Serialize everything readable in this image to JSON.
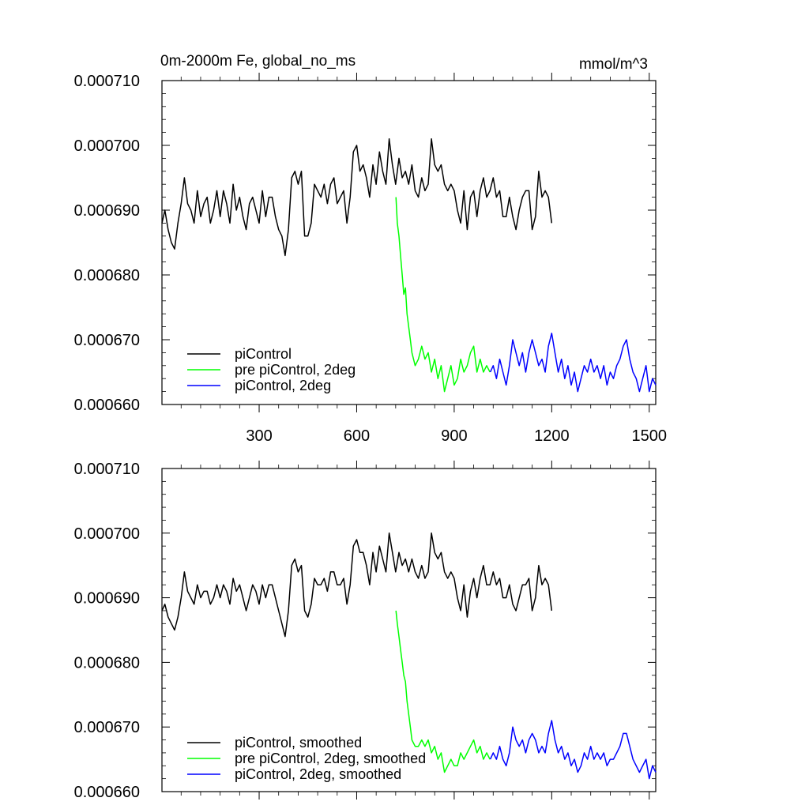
{
  "header": {
    "title": "0m-2000m Fe, global_no_ms",
    "units": "mmol/m^3"
  },
  "chart_data": [
    {
      "type": "line",
      "title": "0m-2000m Fe, global_no_ms",
      "units": "mmol/m^3",
      "xlim": [
        1,
        1520
      ],
      "ylim": [
        0.00066,
        0.00071
      ],
      "xticks": [
        300,
        600,
        900,
        1200,
        1500
      ],
      "xtick_labels": [
        "300",
        "600",
        "900",
        "1200",
        "1500"
      ],
      "yticks": [
        0.00066,
        0.00067,
        0.00068,
        0.00069,
        0.0007,
        0.00071
      ],
      "ytick_labels": [
        "0.000660",
        "0.000670",
        "0.000680",
        "0.000690",
        "0.000700",
        "0.000710"
      ],
      "grid": false,
      "legend_position": "bottom-left",
      "series": [
        {
          "name": "piControl",
          "color": "#000000",
          "x": [
            1,
            10,
            20,
            30,
            40,
            50,
            60,
            70,
            80,
            90,
            100,
            110,
            120,
            130,
            140,
            150,
            160,
            170,
            180,
            190,
            200,
            210,
            220,
            230,
            240,
            250,
            260,
            270,
            280,
            290,
            300,
            310,
            320,
            330,
            340,
            350,
            360,
            370,
            380,
            390,
            400,
            410,
            420,
            430,
            440,
            450,
            460,
            470,
            480,
            490,
            500,
            510,
            520,
            530,
            540,
            550,
            560,
            570,
            580,
            590,
            600,
            610,
            620,
            630,
            640,
            650,
            660,
            670,
            680,
            690,
            700,
            710,
            720,
            730,
            740,
            750,
            760,
            770,
            780,
            790,
            800,
            810,
            820,
            830,
            840,
            850,
            860,
            870,
            880,
            890,
            900,
            910,
            920,
            930,
            940,
            950,
            960,
            970,
            980,
            990,
            1000,
            1010,
            1020,
            1030,
            1040,
            1050,
            1060,
            1070,
            1080,
            1090,
            1100,
            1110,
            1120,
            1130,
            1140,
            1150,
            1160,
            1170,
            1180,
            1190,
            1200
          ],
          "y": [
            0.000688,
            0.00069,
            0.000687,
            0.000685,
            0.000684,
            0.000688,
            0.000691,
            0.000695,
            0.000691,
            0.00069,
            0.000688,
            0.000693,
            0.000689,
            0.000691,
            0.000692,
            0.000688,
            0.00069,
            0.000693,
            0.000689,
            0.000693,
            0.000691,
            0.000688,
            0.000694,
            0.00069,
            0.000692,
            0.000689,
            0.000687,
            0.000691,
            0.000692,
            0.00069,
            0.000688,
            0.000693,
            0.000689,
            0.000692,
            0.000692,
            0.000689,
            0.000687,
            0.000686,
            0.000683,
            0.000687,
            0.000695,
            0.000696,
            0.000694,
            0.000696,
            0.000686,
            0.000686,
            0.000688,
            0.000694,
            0.000693,
            0.000692,
            0.000694,
            0.000691,
            0.000694,
            0.000695,
            0.000691,
            0.000692,
            0.000693,
            0.000688,
            0.000692,
            0.000699,
            0.0007,
            0.000696,
            0.000697,
            0.000695,
            0.000692,
            0.000697,
            0.000694,
            0.000699,
            0.000696,
            0.000694,
            0.000701,
            0.000697,
            0.000694,
            0.000698,
            0.000695,
            0.000696,
            0.000694,
            0.000697,
            0.000693,
            0.000692,
            0.000695,
            0.000693,
            0.000694,
            0.000701,
            0.000697,
            0.000696,
            0.000697,
            0.000694,
            0.000693,
            0.000694,
            0.000693,
            0.00069,
            0.000688,
            0.000693,
            0.000687,
            0.000692,
            0.000693,
            0.000689,
            0.000693,
            0.000695,
            0.000692,
            0.000693,
            0.000695,
            0.000692,
            0.000693,
            0.000689,
            0.000689,
            0.000692,
            0.000689,
            0.000687,
            0.00069,
            0.000692,
            0.000693,
            0.000693,
            0.000687,
            0.000689,
            0.000696,
            0.000692,
            0.000693,
            0.000692,
            0.000688
          ]
        },
        {
          "name": "pre piControl, 2deg",
          "color": "#00ff00",
          "x": [
            721,
            725,
            730,
            735,
            740,
            745,
            750,
            755,
            760,
            765,
            770,
            780,
            790,
            800,
            810,
            820,
            830,
            840,
            850,
            860,
            870,
            880,
            890,
            900,
            910,
            920,
            930,
            940,
            950,
            960,
            970,
            980,
            990,
            1000,
            1010
          ],
          "y": [
            0.000692,
            0.000688,
            0.000686,
            0.000683,
            0.00068,
            0.000677,
            0.000678,
            0.000674,
            0.000672,
            0.00067,
            0.000668,
            0.000666,
            0.000667,
            0.000669,
            0.000667,
            0.000668,
            0.000665,
            0.000667,
            0.000664,
            0.000666,
            0.000662,
            0.000664,
            0.000666,
            0.000663,
            0.000664,
            0.000667,
            0.000665,
            0.000666,
            0.000668,
            0.000669,
            0.000665,
            0.000667,
            0.000665,
            0.000666,
            0.000665
          ]
        },
        {
          "name": "piControl, 2deg",
          "color": "#0000ff",
          "x": [
            1011,
            1020,
            1030,
            1040,
            1050,
            1060,
            1070,
            1080,
            1090,
            1100,
            1110,
            1120,
            1130,
            1140,
            1150,
            1160,
            1170,
            1180,
            1190,
            1200,
            1210,
            1220,
            1230,
            1240,
            1250,
            1260,
            1270,
            1280,
            1290,
            1300,
            1310,
            1320,
            1330,
            1340,
            1350,
            1360,
            1370,
            1380,
            1390,
            1400,
            1410,
            1420,
            1430,
            1440,
            1450,
            1460,
            1470,
            1480,
            1490,
            1500,
            1510,
            1520
          ],
          "y": [
            0.000665,
            0.000666,
            0.000664,
            0.000667,
            0.000665,
            0.000663,
            0.000666,
            0.00067,
            0.000668,
            0.000666,
            0.000668,
            0.000665,
            0.000668,
            0.00067,
            0.000668,
            0.000666,
            0.000667,
            0.000665,
            0.000669,
            0.000671,
            0.000668,
            0.000665,
            0.000667,
            0.000664,
            0.000666,
            0.000663,
            0.000665,
            0.000662,
            0.000664,
            0.000666,
            0.000665,
            0.000667,
            0.000665,
            0.000666,
            0.000664,
            0.000666,
            0.000663,
            0.000665,
            0.000664,
            0.000666,
            0.000667,
            0.000669,
            0.00067,
            0.000667,
            0.000665,
            0.000664,
            0.000662,
            0.000664,
            0.000666,
            0.000662,
            0.000664,
            0.000663
          ]
        }
      ]
    },
    {
      "type": "line",
      "xlim": [
        1,
        1520
      ],
      "ylim": [
        0.00066,
        0.00071
      ],
      "xticks": [
        300,
        600,
        900,
        1200,
        1500
      ],
      "yticks": [
        0.00066,
        0.00067,
        0.00068,
        0.00069,
        0.0007,
        0.00071
      ],
      "ytick_labels": [
        "0.000660",
        "0.000670",
        "0.000680",
        "0.000690",
        "0.000700",
        "0.000710"
      ],
      "grid": false,
      "legend_position": "bottom-left",
      "series": [
        {
          "name": "piControl, smoothed",
          "color": "#000000",
          "x": [
            1,
            10,
            20,
            30,
            40,
            50,
            60,
            70,
            80,
            90,
            100,
            110,
            120,
            130,
            140,
            150,
            160,
            170,
            180,
            190,
            200,
            210,
            220,
            230,
            240,
            250,
            260,
            270,
            280,
            290,
            300,
            310,
            320,
            330,
            340,
            350,
            360,
            370,
            380,
            390,
            400,
            410,
            420,
            430,
            440,
            450,
            460,
            470,
            480,
            490,
            500,
            510,
            520,
            530,
            540,
            550,
            560,
            570,
            580,
            590,
            600,
            610,
            620,
            630,
            640,
            650,
            660,
            670,
            680,
            690,
            700,
            710,
            720,
            730,
            740,
            750,
            760,
            770,
            780,
            790,
            800,
            810,
            820,
            830,
            840,
            850,
            860,
            870,
            880,
            890,
            900,
            910,
            920,
            930,
            940,
            950,
            960,
            970,
            980,
            990,
            1000,
            1010,
            1020,
            1030,
            1040,
            1050,
            1060,
            1070,
            1080,
            1090,
            1100,
            1110,
            1120,
            1130,
            1140,
            1150,
            1160,
            1170,
            1180,
            1190,
            1200
          ],
          "y": [
            0.000688,
            0.000689,
            0.000687,
            0.000686,
            0.000685,
            0.000687,
            0.00069,
            0.000694,
            0.000691,
            0.00069,
            0.000689,
            0.000692,
            0.00069,
            0.000691,
            0.000691,
            0.000689,
            0.00069,
            0.000692,
            0.00069,
            0.000692,
            0.000691,
            0.000689,
            0.000693,
            0.000691,
            0.000692,
            0.00069,
            0.000688,
            0.00069,
            0.000692,
            0.000691,
            0.000689,
            0.000692,
            0.00069,
            0.000692,
            0.000692,
            0.00069,
            0.000688,
            0.000686,
            0.000684,
            0.000688,
            0.000695,
            0.000696,
            0.000694,
            0.000695,
            0.000688,
            0.000687,
            0.000689,
            0.000693,
            0.000692,
            0.000692,
            0.000693,
            0.000691,
            0.000694,
            0.000694,
            0.000692,
            0.000692,
            0.000693,
            0.000689,
            0.000692,
            0.000698,
            0.000699,
            0.000697,
            0.000697,
            0.000695,
            0.000692,
            0.000697,
            0.000694,
            0.000698,
            0.000696,
            0.000694,
            0.0007,
            0.000697,
            0.000694,
            0.000697,
            0.000695,
            0.000696,
            0.000694,
            0.000696,
            0.000694,
            0.000693,
            0.000695,
            0.000693,
            0.000694,
            0.0007,
            0.000697,
            0.000696,
            0.000697,
            0.000694,
            0.000693,
            0.000694,
            0.000693,
            0.00069,
            0.000688,
            0.000692,
            0.000687,
            0.000691,
            0.000693,
            0.00069,
            0.000693,
            0.000695,
            0.000692,
            0.000692,
            0.000694,
            0.000692,
            0.000693,
            0.00069,
            0.00069,
            0.000692,
            0.000689,
            0.000688,
            0.00069,
            0.000692,
            0.000692,
            0.000693,
            0.000688,
            0.00069,
            0.000695,
            0.000692,
            0.000693,
            0.000692,
            0.000688
          ]
        },
        {
          "name": "pre piControl, 2deg, smoothed",
          "color": "#00ff00",
          "x": [
            721,
            725,
            730,
            735,
            740,
            745,
            750,
            755,
            760,
            765,
            770,
            780,
            790,
            800,
            810,
            820,
            830,
            840,
            850,
            860,
            870,
            880,
            890,
            900,
            910,
            920,
            930,
            940,
            950,
            960,
            970,
            980,
            990,
            1000,
            1010
          ],
          "y": [
            0.000688,
            0.000686,
            0.000684,
            0.000682,
            0.00068,
            0.000678,
            0.000677,
            0.000674,
            0.000672,
            0.00067,
            0.000668,
            0.000667,
            0.000667,
            0.000668,
            0.000667,
            0.000668,
            0.000666,
            0.000667,
            0.000665,
            0.000666,
            0.000663,
            0.000664,
            0.000665,
            0.000664,
            0.000664,
            0.000666,
            0.000665,
            0.000666,
            0.000667,
            0.000668,
            0.000666,
            0.000667,
            0.000665,
            0.000666,
            0.000665
          ]
        },
        {
          "name": "piControl, 2deg, smoothed",
          "color": "#0000ff",
          "x": [
            1011,
            1020,
            1030,
            1040,
            1050,
            1060,
            1070,
            1080,
            1090,
            1100,
            1110,
            1120,
            1130,
            1140,
            1150,
            1160,
            1170,
            1180,
            1190,
            1200,
            1210,
            1220,
            1230,
            1240,
            1250,
            1260,
            1270,
            1280,
            1290,
            1300,
            1310,
            1320,
            1330,
            1340,
            1350,
            1360,
            1370,
            1380,
            1390,
            1400,
            1410,
            1420,
            1430,
            1440,
            1450,
            1460,
            1470,
            1480,
            1490,
            1500,
            1510,
            1520
          ],
          "y": [
            0.000665,
            0.000666,
            0.000665,
            0.000667,
            0.000665,
            0.000664,
            0.000666,
            0.00067,
            0.000668,
            0.000667,
            0.000668,
            0.000666,
            0.000668,
            0.000669,
            0.000668,
            0.000666,
            0.000667,
            0.000666,
            0.000669,
            0.000671,
            0.000668,
            0.000666,
            0.000667,
            0.000665,
            0.000666,
            0.000664,
            0.000665,
            0.000663,
            0.000664,
            0.000666,
            0.000665,
            0.000667,
            0.000665,
            0.000666,
            0.000665,
            0.000666,
            0.000664,
            0.000665,
            0.000665,
            0.000666,
            0.000667,
            0.000669,
            0.000669,
            0.000667,
            0.000665,
            0.000664,
            0.000663,
            0.000664,
            0.000665,
            0.000662,
            0.000664,
            0.000663
          ]
        }
      ]
    }
  ]
}
